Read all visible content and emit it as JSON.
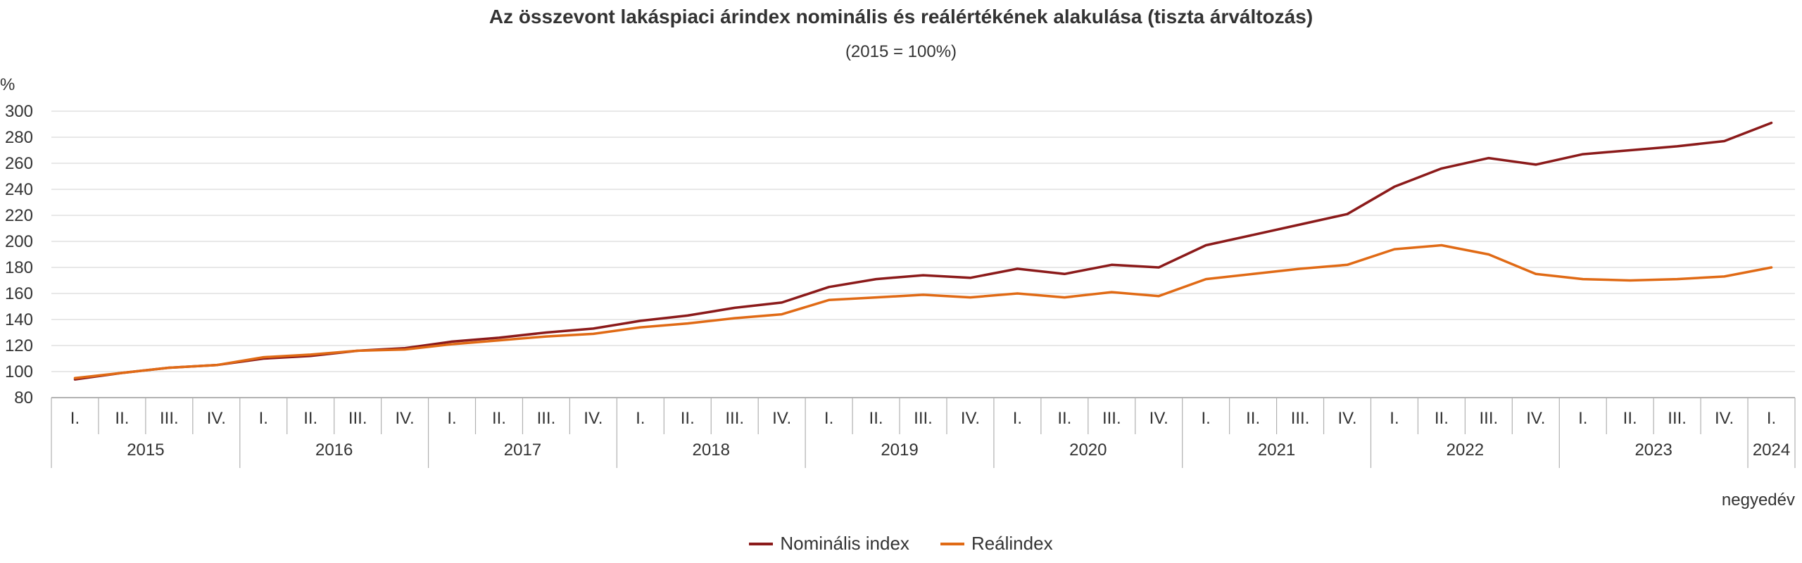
{
  "chart_data": {
    "type": "line",
    "title": "Az összevont lakáspiaci árindex nominális és reálértékének alakulása (tiszta árváltozás)",
    "subtitle": "(2015 = 100%)",
    "ylabel": "%",
    "xlabel": "negyedév",
    "ylim": [
      80,
      300
    ],
    "yticks": [
      80,
      100,
      120,
      140,
      160,
      180,
      200,
      220,
      240,
      260,
      280,
      300
    ],
    "grid": true,
    "legend_position": "bottom",
    "quarters": [
      "I.",
      "II.",
      "III.",
      "IV.",
      "I.",
      "II.",
      "III.",
      "IV.",
      "I.",
      "II.",
      "III.",
      "IV.",
      "I.",
      "II.",
      "III.",
      "IV.",
      "I.",
      "II.",
      "III.",
      "IV.",
      "I.",
      "II.",
      "III.",
      "IV.",
      "I.",
      "II.",
      "III.",
      "IV.",
      "I.",
      "II.",
      "III.",
      "IV.",
      "I.",
      "II.",
      "III.",
      "IV.",
      "I."
    ],
    "years": [
      {
        "label": "2015",
        "quarters": 4
      },
      {
        "label": "2016",
        "quarters": 4
      },
      {
        "label": "2017",
        "quarters": 4
      },
      {
        "label": "2018",
        "quarters": 4
      },
      {
        "label": "2019",
        "quarters": 4
      },
      {
        "label": "2020",
        "quarters": 4
      },
      {
        "label": "2021",
        "quarters": 4
      },
      {
        "label": "2022",
        "quarters": 4
      },
      {
        "label": "2023",
        "quarters": 4
      },
      {
        "label": "2024",
        "quarters": 1
      }
    ],
    "series": [
      {
        "name": "Nominális index",
        "color": "#8b1a1a",
        "values": [
          94,
          99,
          103,
          105,
          110,
          112,
          116,
          118,
          123,
          126,
          130,
          133,
          139,
          143,
          149,
          153,
          165,
          171,
          174,
          172,
          179,
          175,
          182,
          180,
          197,
          205,
          213,
          221,
          242,
          256,
          264,
          259,
          267,
          270,
          273,
          277,
          291
        ]
      },
      {
        "name": "Reálindex",
        "color": "#e06a15",
        "values": [
          95,
          99,
          103,
          105,
          111,
          113,
          116,
          117,
          121,
          124,
          127,
          129,
          134,
          137,
          141,
          144,
          155,
          157,
          159,
          157,
          160,
          157,
          161,
          158,
          171,
          175,
          179,
          182,
          194,
          197,
          190,
          175,
          171,
          170,
          171,
          173,
          180
        ]
      }
    ]
  }
}
